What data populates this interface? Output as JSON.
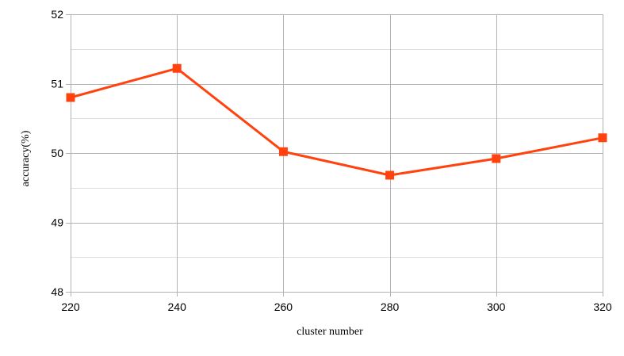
{
  "chart_data": {
    "type": "line",
    "title": "",
    "xlabel": "cluster number",
    "ylabel": "accuracy(%)",
    "x": [
      220,
      240,
      260,
      280,
      300,
      320
    ],
    "series": [
      {
        "values": [
          50.8,
          51.22,
          50.02,
          49.68,
          49.92,
          50.22
        ]
      }
    ],
    "xlim": [
      220,
      320
    ],
    "ylim": [
      48,
      52
    ],
    "xticks": [
      220,
      240,
      260,
      280,
      300,
      320
    ],
    "yticks": [
      48,
      49,
      50,
      51,
      52
    ],
    "grid": true,
    "minor_y_grid": true,
    "line_color": "#ff420e",
    "marker": "square",
    "grid_color": "#b3b3b3",
    "minor_grid_color": "#dddddd"
  }
}
